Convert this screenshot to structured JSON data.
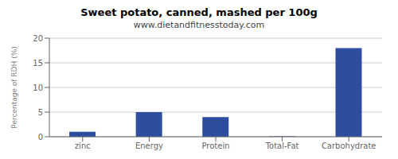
{
  "chart_data": {
    "type": "bar",
    "title": "Sweet potato, canned, mashed per 100g",
    "subtitle": "www.dietandfitnesstoday.com",
    "categories": [
      "zinc",
      "Energy",
      "Protein",
      "Total-Fat",
      "Carbohydrate"
    ],
    "values": [
      1,
      5,
      4,
      0.1,
      18
    ],
    "color": "#2e4d9e",
    "ylabel": "Percentage of RDH (%)",
    "ylim": [
      0,
      20
    ],
    "yticks": [
      0,
      5,
      10,
      15,
      20
    ],
    "grid": true
  }
}
